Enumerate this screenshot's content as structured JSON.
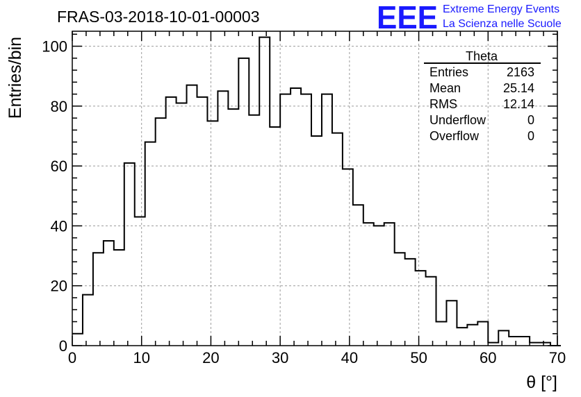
{
  "header": {
    "title": "FRAS-03-2018-10-01-00003",
    "logo_mark": "EEE",
    "logo_line1": "Extreme Energy Events",
    "logo_line2": "La Scienza nelle Scuole"
  },
  "stats_box": {
    "name": "Theta",
    "rows": [
      {
        "label": "Entries",
        "value": "2163"
      },
      {
        "label": "Mean",
        "value": "25.14"
      },
      {
        "label": "RMS",
        "value": "12.14"
      },
      {
        "label": "Underflow",
        "value": "0"
      },
      {
        "label": "Overflow",
        "value": "0"
      }
    ]
  },
  "colors": {
    "logo": "#1a1aff",
    "line": "#000000",
    "grid": "#9a9a9a"
  },
  "chart_data": {
    "type": "histogram",
    "xlabel": "θ [°]",
    "ylabel": "Entries/bin",
    "xlim": [
      0,
      70
    ],
    "ylim": [
      0,
      105
    ],
    "bin_width": 1.5,
    "bin_start": 0,
    "x_ticks": [
      0,
      10,
      20,
      30,
      40,
      50,
      60,
      70
    ],
    "y_ticks": [
      0,
      20,
      40,
      60,
      80,
      100
    ],
    "grid": true,
    "values": [
      4,
      17,
      31,
      35,
      32,
      61,
      43,
      68,
      76,
      83,
      81,
      87,
      83,
      75,
      85,
      79,
      96,
      77,
      103,
      73,
      84,
      86,
      84,
      70,
      84,
      71,
      59,
      47,
      41,
      40,
      41,
      31,
      29,
      25,
      23,
      8,
      15,
      6,
      7,
      8,
      1,
      5,
      3,
      3,
      1,
      1,
      0
    ]
  }
}
